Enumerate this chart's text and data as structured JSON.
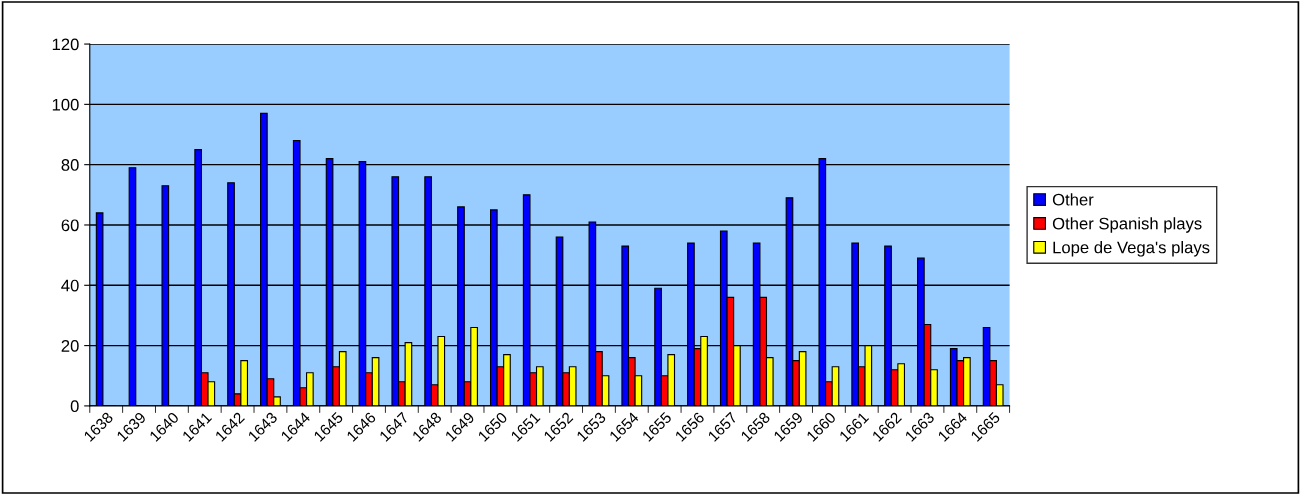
{
  "chart_data": {
    "type": "bar",
    "categories": [
      "1638",
      "1639",
      "1640",
      "1641",
      "1642",
      "1643",
      "1644",
      "1645",
      "1646",
      "1647",
      "1648",
      "1649",
      "1650",
      "1651",
      "1652",
      "1653",
      "1654",
      "1655",
      "1656",
      "1657",
      "1658",
      "1659",
      "1660",
      "1661",
      "1662",
      "1663",
      "1664",
      "1665"
    ],
    "series": [
      {
        "name": "Other",
        "color": "#0000ff",
        "values": [
          64,
          79,
          73,
          85,
          74,
          97,
          88,
          82,
          81,
          76,
          76,
          66,
          65,
          70,
          56,
          61,
          53,
          39,
          54,
          58,
          54,
          69,
          82,
          54,
          53,
          49,
          19,
          26
        ]
      },
      {
        "name": "Other Spanish plays",
        "color": "#ff0000",
        "values": [
          0,
          0,
          0,
          11,
          4,
          9,
          6,
          13,
          11,
          8,
          7,
          8,
          13,
          11,
          11,
          18,
          16,
          10,
          19,
          36,
          36,
          15,
          8,
          13,
          12,
          27,
          15,
          15
        ]
      },
      {
        "name": "Lope de Vega's plays",
        "color": "#ffff00",
        "values": [
          0,
          0,
          0,
          8,
          15,
          3,
          11,
          18,
          16,
          21,
          23,
          26,
          17,
          13,
          13,
          10,
          10,
          17,
          23,
          20,
          16,
          18,
          13,
          20,
          14,
          12,
          16,
          7
        ]
      }
    ],
    "ylim": [
      0,
      120
    ],
    "yticks": [
      0,
      20,
      40,
      60,
      80,
      100,
      120
    ],
    "grid": "y",
    "legend": "right"
  }
}
